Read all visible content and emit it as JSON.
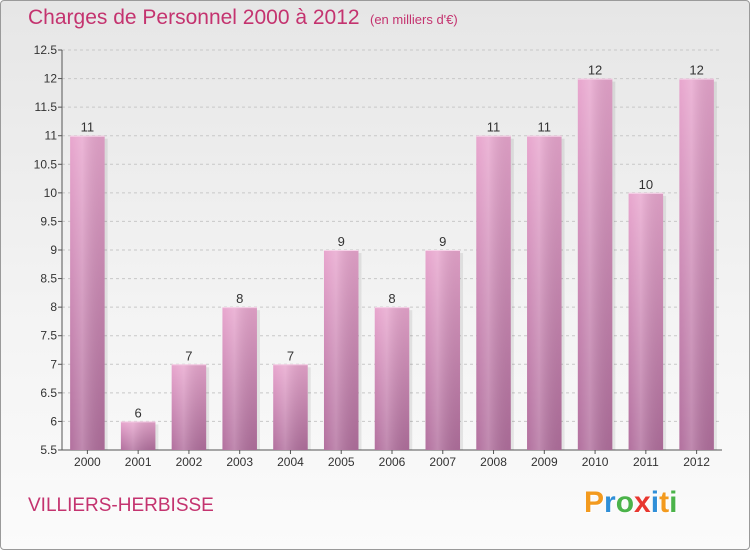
{
  "header": {
    "title": "Charges de Personnel 2000 à 2012",
    "unit": "(en milliers d'€)"
  },
  "footer": {
    "commune": "VILLIERS-HERBISSE",
    "logo_letters": [
      {
        "char": "P",
        "color": "#f39a1e"
      },
      {
        "char": "r",
        "color": "#2f8fd8"
      },
      {
        "char": "o",
        "color": "#4bb34a"
      },
      {
        "char": "x",
        "color": "#e8362f"
      },
      {
        "char": "i",
        "color": "#2f8fd8"
      },
      {
        "char": "t",
        "color": "#f39a1e"
      },
      {
        "char": "i",
        "color": "#4bb34a"
      }
    ]
  },
  "chart_data": {
    "type": "bar",
    "categories": [
      "2000",
      "2001",
      "2002",
      "2003",
      "2004",
      "2005",
      "2006",
      "2007",
      "2008",
      "2009",
      "2010",
      "2011",
      "2012"
    ],
    "values": [
      11,
      6,
      7,
      8,
      7,
      9,
      8,
      9,
      11,
      11,
      12,
      10,
      12
    ],
    "value_labels": [
      "11",
      "6",
      "7",
      "8",
      "7",
      "9",
      "8",
      "9",
      "11",
      "11",
      "12",
      "10",
      "12"
    ],
    "ylim": [
      5.5,
      12.5
    ],
    "yticks": [
      5.5,
      6,
      6.5,
      7,
      7.5,
      8,
      8.5,
      9,
      9.5,
      10,
      10.5,
      11,
      11.5,
      12,
      12.5
    ],
    "ytick_labels": [
      "5.5",
      "6",
      "6.5",
      "7",
      "7.5",
      "8",
      "8.5",
      "9",
      "9.5",
      "10",
      "10.5",
      "11",
      "11.5",
      "12",
      "12.5"
    ],
    "bar_color_top": "#e8a6ce",
    "bar_color_bottom": "#b2709e",
    "grid": true,
    "legend": false
  }
}
